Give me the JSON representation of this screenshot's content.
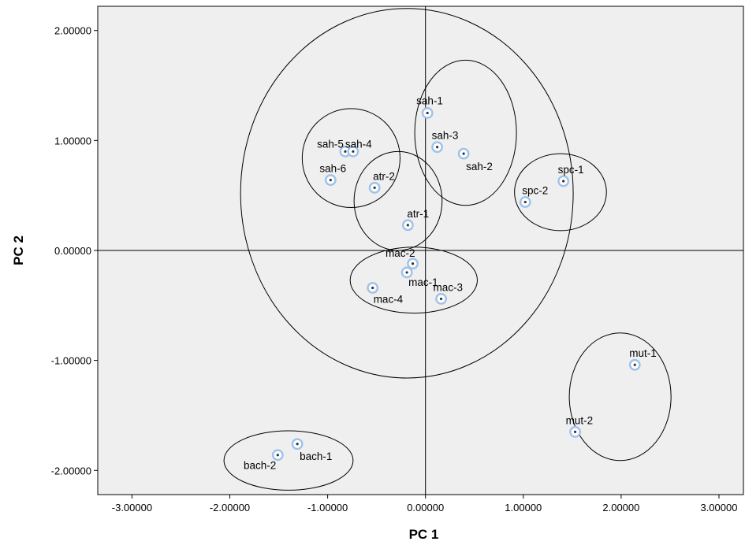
{
  "chart_data": {
    "type": "scatter",
    "title": "",
    "xlabel": "PC 1",
    "ylabel": "PC 2",
    "xlim": [
      -3.35,
      3.25
    ],
    "ylim": [
      -2.22,
      2.22
    ],
    "x_ticks": [
      -3,
      -2,
      -1,
      0,
      1,
      2,
      3
    ],
    "y_ticks": [
      -2,
      -1,
      0,
      1,
      2
    ],
    "x_tick_labels": [
      "-3.00000",
      "-2.00000",
      "-1.00000",
      "0.00000",
      "1.00000",
      "2.00000",
      "3.00000"
    ],
    "y_tick_labels": [
      "-2.00000",
      "-1.00000",
      "0.00000",
      "1.00000",
      "2.00000"
    ],
    "grid": false,
    "reference_lines": {
      "x": 0,
      "y": 0
    },
    "colors": {
      "plot_background": "#efefef",
      "marker": "#9ec2ea",
      "ellipse": "#000000"
    },
    "points": [
      {
        "label": "sah-1",
        "x": 0.02,
        "y": 1.25
      },
      {
        "label": "sah-3",
        "x": 0.12,
        "y": 0.94
      },
      {
        "label": "sah-2",
        "x": 0.39,
        "y": 0.88
      },
      {
        "label": "sah-5",
        "x": -0.82,
        "y": 0.9
      },
      {
        "label": "sah-4",
        "x": -0.74,
        "y": 0.9
      },
      {
        "label": "sah-6",
        "x": -0.97,
        "y": 0.64
      },
      {
        "label": "atr-2",
        "x": -0.52,
        "y": 0.57
      },
      {
        "label": "atr-1",
        "x": -0.18,
        "y": 0.23
      },
      {
        "label": "spc-1",
        "x": 1.41,
        "y": 0.63
      },
      {
        "label": "spc-2",
        "x": 1.02,
        "y": 0.44
      },
      {
        "label": "mac-2",
        "x": -0.13,
        "y": -0.12
      },
      {
        "label": "mac-1",
        "x": -0.19,
        "y": -0.2
      },
      {
        "label": "mac-4",
        "x": -0.54,
        "y": -0.34
      },
      {
        "label": "mac-3",
        "x": 0.16,
        "y": -0.44
      },
      {
        "label": "mut-1",
        "x": 2.14,
        "y": -1.04
      },
      {
        "label": "mut-2",
        "x": 1.53,
        "y": -1.65
      },
      {
        "label": "bach-1",
        "x": -1.31,
        "y": -1.76
      },
      {
        "label": "bach-2",
        "x": -1.51,
        "y": -1.86
      }
    ],
    "groups": [
      {
        "cx": -0.19,
        "cy": 0.52,
        "rx": 1.7,
        "ry": 1.68
      },
      {
        "cx": 0.41,
        "cy": 1.07,
        "rx": 0.52,
        "ry": 0.66
      },
      {
        "cx": -0.76,
        "cy": 0.84,
        "rx": 0.5,
        "ry": 0.45
      },
      {
        "cx": -0.28,
        "cy": 0.45,
        "rx": 0.45,
        "ry": 0.45
      },
      {
        "cx": 1.38,
        "cy": 0.53,
        "rx": 0.47,
        "ry": 0.35
      },
      {
        "cx": -0.12,
        "cy": -0.27,
        "rx": 0.65,
        "ry": 0.3
      },
      {
        "cx": 1.99,
        "cy": -1.33,
        "rx": 0.52,
        "ry": 0.58
      },
      {
        "cx": -1.4,
        "cy": -1.91,
        "rx": 0.66,
        "ry": 0.27
      }
    ]
  }
}
